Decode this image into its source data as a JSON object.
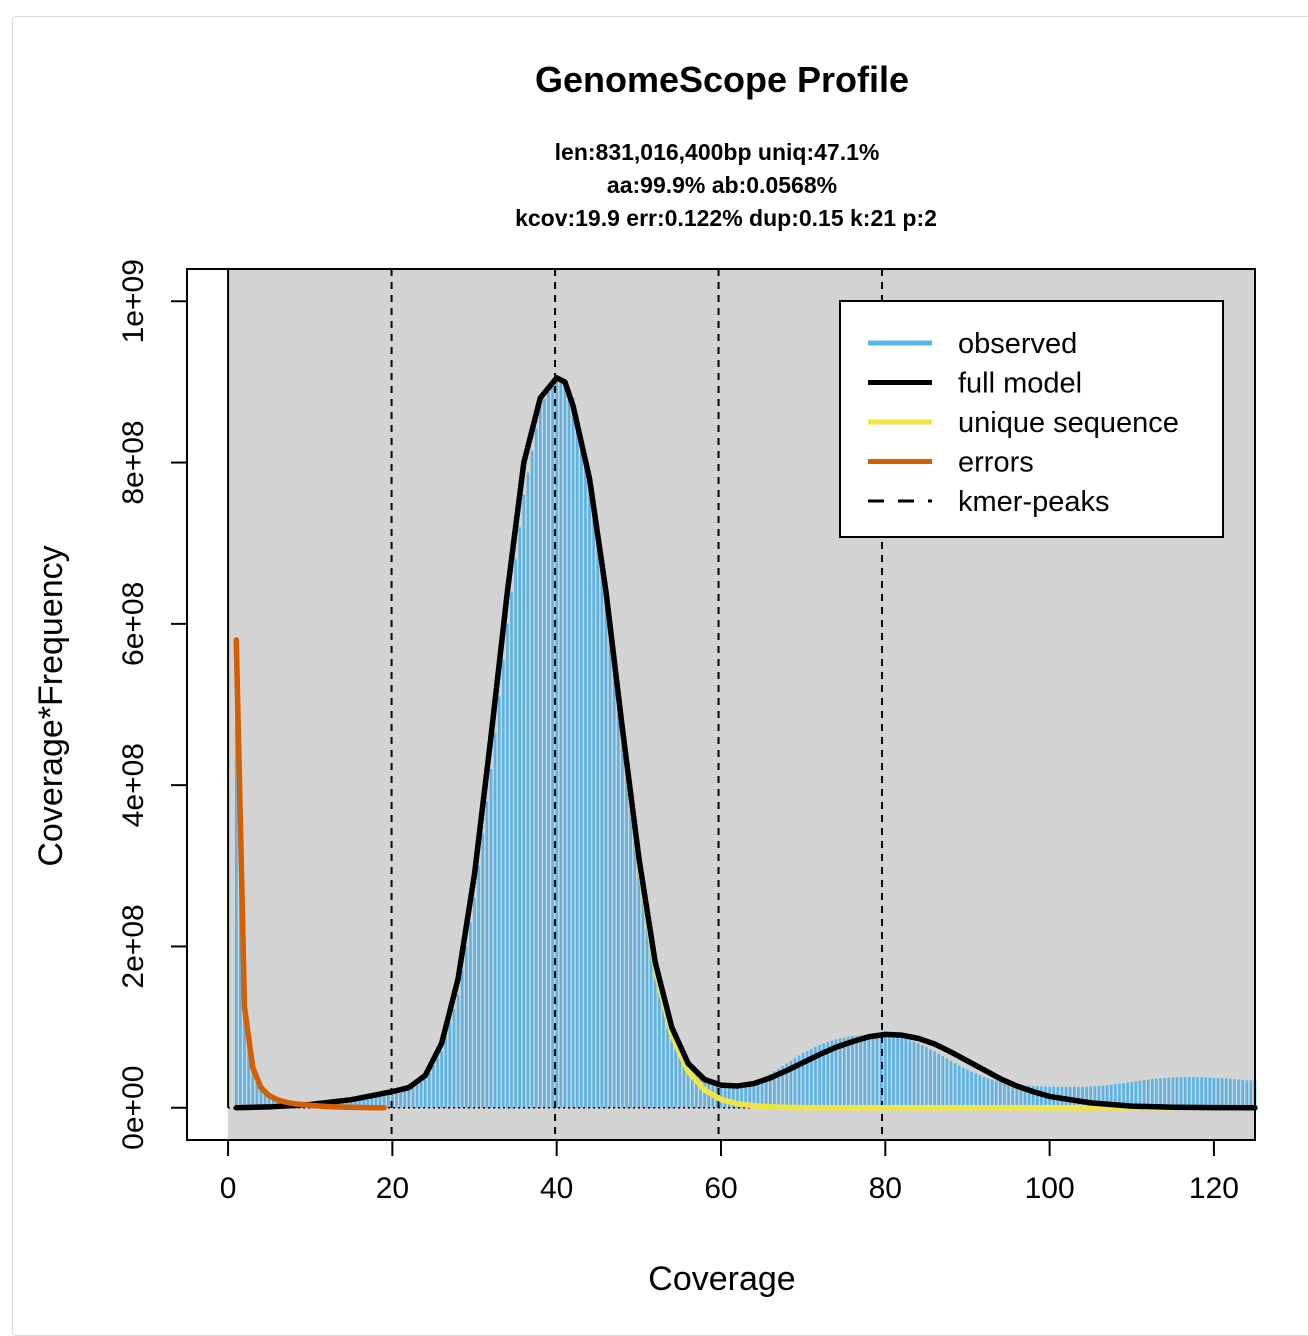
{
  "chart_data": {
    "type": "line",
    "title": "GenomeScope Profile",
    "subtitle_lines": [
      "len:831,016,400bp uniq:47.1%",
      "aa:99.9% ab:0.0568%",
      "kcov:19.9 err:0.122%  dup:0.15  k:21 p:2"
    ],
    "xlabel": "Coverage",
    "ylabel": "Coverage*Frequency",
    "xlim": [
      -5,
      125
    ],
    "ylim": [
      -40000000,
      1040000000
    ],
    "x_ticks": [
      0,
      20,
      40,
      60,
      80,
      100,
      120
    ],
    "y_ticks": [
      0,
      200000000,
      400000000,
      600000000,
      800000000,
      1000000000
    ],
    "y_tick_labels": [
      "0e+00",
      "2e+08",
      "4e+08",
      "6e+08",
      "8e+08",
      "1e+09"
    ],
    "kmer_peaks": [
      19.9,
      39.8,
      59.7,
      79.6
    ],
    "observed_region_start": 0,
    "colors": {
      "panel": "#d3d3d3",
      "observed": "#56b4e9",
      "full_model": "#000000",
      "unique": "#f0e442",
      "errors": "#d55e00"
    },
    "legend": {
      "placement": "top-right",
      "entries": [
        {
          "label": "observed",
          "key": "observed",
          "style": "solid"
        },
        {
          "label": "full model",
          "key": "full_model",
          "style": "solid"
        },
        {
          "label": "unique sequence",
          "key": "unique",
          "style": "solid"
        },
        {
          "label": "errors",
          "key": "errors",
          "style": "solid"
        },
        {
          "label": "kmer-peaks",
          "key": "full_model",
          "style": "dashed"
        }
      ]
    },
    "series": [
      {
        "name": "observed",
        "x": [
          1,
          2,
          3,
          4,
          5,
          6,
          8,
          10,
          12,
          14,
          16,
          18,
          20,
          22,
          24,
          26,
          28,
          30,
          32,
          34,
          36,
          38,
          40,
          42,
          44,
          46,
          48,
          50,
          52,
          54,
          56,
          58,
          60,
          62,
          64,
          66,
          68,
          70,
          72,
          74,
          76,
          78,
          80,
          82,
          84,
          86,
          88,
          90,
          92,
          94,
          96,
          98,
          100,
          102,
          104,
          106,
          108,
          110,
          112,
          114,
          116,
          118,
          120,
          122,
          124
        ],
        "y": [
          580000000,
          130000000,
          50000000,
          25000000,
          15000000,
          10000000,
          6000000,
          6000000,
          8000000,
          10000000,
          12000000,
          15000000,
          18000000,
          22000000,
          35000000,
          70000000,
          140000000,
          260000000,
          420000000,
          600000000,
          760000000,
          870000000,
          905000000,
          880000000,
          790000000,
          640000000,
          470000000,
          310000000,
          180000000,
          100000000,
          60000000,
          35000000,
          25000000,
          25000000,
          30000000,
          42000000,
          55000000,
          68000000,
          78000000,
          85000000,
          89000000,
          90000000,
          90000000,
          87000000,
          80000000,
          70000000,
          58000000,
          47000000,
          38000000,
          32000000,
          28000000,
          27000000,
          26000000,
          26000000,
          26000000,
          27000000,
          29000000,
          32000000,
          35000000,
          37000000,
          38000000,
          38000000,
          37000000,
          36000000,
          34000000
        ]
      },
      {
        "name": "full model",
        "x": [
          1,
          5,
          10,
          15,
          20,
          22,
          24,
          26,
          28,
          30,
          32,
          34,
          36,
          38,
          40,
          41,
          42,
          44,
          46,
          48,
          50,
          52,
          54,
          56,
          58,
          60,
          62,
          64,
          66,
          68,
          70,
          72,
          74,
          76,
          78,
          80,
          82,
          84,
          86,
          88,
          90,
          92,
          94,
          96,
          98,
          100,
          105,
          110,
          115,
          120,
          125
        ],
        "y": [
          0,
          1000000,
          4000000,
          10000000,
          20000000,
          25000000,
          40000000,
          80000000,
          160000000,
          290000000,
          460000000,
          640000000,
          800000000,
          880000000,
          905000000,
          900000000,
          870000000,
          780000000,
          640000000,
          470000000,
          310000000,
          180000000,
          100000000,
          55000000,
          35000000,
          28000000,
          27000000,
          30000000,
          37000000,
          46000000,
          56000000,
          66000000,
          75000000,
          82000000,
          88000000,
          91000000,
          90000000,
          86000000,
          79000000,
          69000000,
          58000000,
          47000000,
          36000000,
          27000000,
          20000000,
          14000000,
          6000000,
          2000000,
          600000,
          200000,
          0
        ]
      },
      {
        "name": "unique sequence",
        "x": [
          48,
          50,
          52,
          54,
          56,
          58,
          60,
          62,
          64,
          66,
          68,
          70,
          75,
          80,
          90,
          100,
          110,
          115
        ],
        "y": [
          470000000,
          305000000,
          172000000,
          90000000,
          45000000,
          22000000,
          10000000,
          5000000,
          2500000,
          1200000,
          500000,
          200000,
          0,
          0,
          0,
          0,
          0,
          0
        ]
      },
      {
        "name": "errors",
        "x": [
          1,
          2,
          3,
          4,
          5,
          6,
          7,
          8,
          10,
          12,
          14,
          16,
          18,
          19
        ],
        "y": [
          580000000,
          125000000,
          50000000,
          25000000,
          15000000,
          10000000,
          7000000,
          5000000,
          3000000,
          1500000,
          800000,
          300000,
          0,
          0
        ]
      }
    ]
  }
}
